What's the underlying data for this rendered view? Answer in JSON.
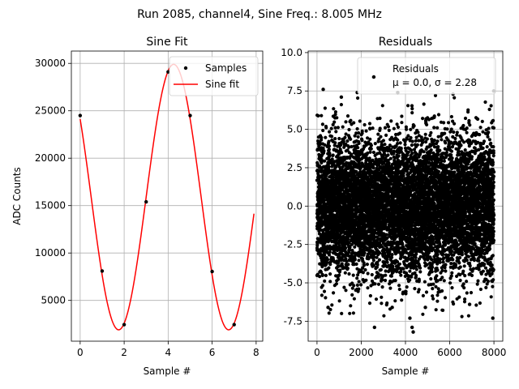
{
  "figure": {
    "suptitle": "Run 2085, channel4, Sine Freq.: 8.005 MHz"
  },
  "chart_data": [
    {
      "type": "line",
      "title": "Sine Fit",
      "xlabel": "Sample #",
      "ylabel": "ADC Counts",
      "xlim": [
        -0.4,
        8.3
      ],
      "ylim": [
        700,
        31300
      ],
      "xticks": [
        0,
        2,
        4,
        6,
        8
      ],
      "yticks": [
        5000,
        10000,
        15000,
        20000,
        25000,
        30000
      ],
      "grid": true,
      "legend_position": "top-right",
      "series": [
        {
          "name": "Samples",
          "style": "scatter",
          "color": "#000000",
          "x": [
            0,
            1,
            2,
            3,
            4,
            5,
            6,
            7
          ],
          "y": [
            24500,
            8100,
            2450,
            15400,
            29100,
            24500,
            8050,
            2450
          ]
        },
        {
          "name": "Sine fit",
          "style": "line",
          "color": "#ff0000",
          "fit": {
            "amplitude": 14000,
            "offset": 15900,
            "period": 5.0,
            "peak_at": 4.25,
            "x_start": 0,
            "x_end": 7.9
          }
        }
      ]
    },
    {
      "type": "scatter",
      "title": "Residuals",
      "xlabel": "",
      "xlabel_shown": "Sample #",
      "ylabel": "",
      "xlim": [
        -400,
        8400
      ],
      "ylim": [
        -8.8,
        10.1
      ],
      "xticks": [
        0,
        2000,
        4000,
        6000,
        8000
      ],
      "yticks": [
        -7.5,
        -5.0,
        -2.5,
        0.0,
        2.5,
        5.0,
        7.5,
        10.0
      ],
      "grid": true,
      "legend_position": "top-right",
      "legend_line1": "Residuals",
      "legend_line2": "μ = 0.0, σ = 2.28",
      "series": [
        {
          "name": "Residuals",
          "color": "#000000",
          "n_points": 8000,
          "x_range": [
            0,
            8000
          ],
          "mean": 0.0,
          "sigma": 2.28,
          "outliers": [
            {
              "x": 2550,
              "y": 8.4
            },
            {
              "x": 4350,
              "y": -8.2
            },
            {
              "x": 4300,
              "y": -7.9
            },
            {
              "x": 2600,
              "y": -7.9
            },
            {
              "x": 280,
              "y": 7.6
            },
            {
              "x": 3650,
              "y": 7.4
            },
            {
              "x": 1820,
              "y": 7.4
            },
            {
              "x": 7950,
              "y": -7.3
            },
            {
              "x": 7990,
              "y": 7.5
            },
            {
              "x": 6150,
              "y": 7.3
            },
            {
              "x": 3400,
              "y": -6.6
            },
            {
              "x": 500,
              "y": -6.6
            },
            {
              "x": 4900,
              "y": -6.6
            },
            {
              "x": 6900,
              "y": -6.4
            },
            {
              "x": 4200,
              "y": -7.3
            },
            {
              "x": 1100,
              "y": 7.1
            }
          ]
        }
      ]
    }
  ]
}
